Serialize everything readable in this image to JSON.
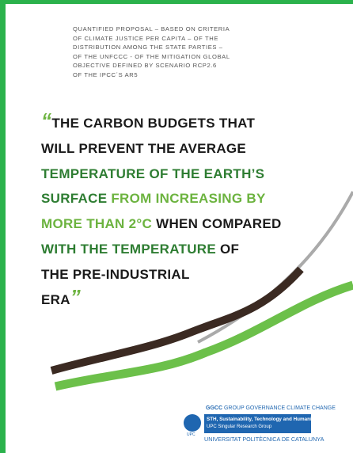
{
  "header": {
    "subtitle_lines": [
      "QUANTIFIED PROPOSAL – BASED ON CRITERIA",
      "OF CLIMATE JUSTICE PER CAPITA – OF THE",
      "DISTRIBUTION AMONG THE STATE PARTIES –",
      "OF THE UNFCCC - OF THE MITIGATION GLOBAL",
      "OBJECTIVE DEFINED BY SCENARIO RCP2.6",
      "OF THE IPCC´S AR5"
    ]
  },
  "title": {
    "open_quote": "“",
    "close_quote": "”",
    "quote_color": "#6cb33f",
    "lines": [
      [
        {
          "text": "THE CARBON BUDGETS THAT",
          "color": "#1a1a1a"
        }
      ],
      [
        {
          "text": "WILL PREVENT THE AVERAGE",
          "color": "#1a1a1a"
        }
      ],
      [
        {
          "text": "TEMPERATURE OF THE EARTH’S",
          "color": "#2e7d32"
        }
      ],
      [
        {
          "text": "SURFACE ",
          "color": "#2e7d32"
        },
        {
          "text": "FROM INCREASING BY",
          "color": "#6cb33f"
        }
      ],
      [
        {
          "text": "MORE THAN 2°C ",
          "color": "#6cb33f"
        },
        {
          "text": "WHEN COMPARED",
          "color": "#1a1a1a"
        }
      ],
      [
        {
          "text": "WITH THE TEMPERATURE ",
          "color": "#2e7d32"
        },
        {
          "text": "OF",
          "color": "#1a1a1a"
        }
      ],
      [
        {
          "text": "THE PRE-INDUSTRIAL",
          "color": "#1a1a1a"
        }
      ],
      [
        {
          "text": "ERA",
          "color": "#1a1a1a"
        }
      ]
    ]
  },
  "footer": {
    "ggcc_mark": "GGCC",
    "ggcc_name": "GROUP GOVERNANCE CLIMATE CHANGE",
    "upc_mark": "UPC",
    "sth_name": "STH, Sustainability, Technology and Humanism",
    "sth_group": "UPC Singular Research Group",
    "university": "UNIVERSITAT POLITÈCNICA DE CATALUNYA"
  }
}
